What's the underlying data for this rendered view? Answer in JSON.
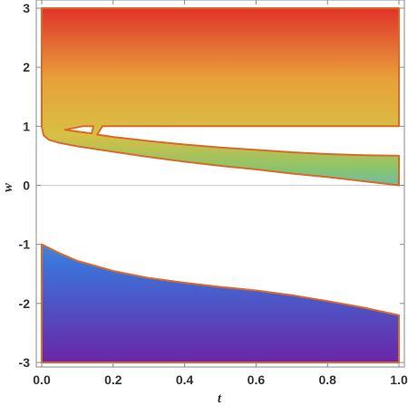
{
  "chart_data": {
    "type": "area",
    "title": "",
    "xlabel": "t",
    "ylabel": "w",
    "xlim": [
      0,
      1
    ],
    "ylim": [
      -3,
      3
    ],
    "x_ticks": [
      "0.0",
      "0.2",
      "0.4",
      "0.6",
      "0.8",
      "1.0"
    ],
    "y_ticks": [
      "-3",
      "-2",
      "-1",
      "0",
      "1",
      "2",
      "3"
    ],
    "grid": false,
    "colors": {
      "edge": "#d96a2a",
      "frame": "#888888",
      "zero_line": "#cccccc",
      "gradient_top": "#e0332a",
      "gradient_upper_mid": "#e8a03a",
      "gradient_mid": "#d7c043",
      "gradient_lower_mid": "#8cc46a",
      "gradient_zero": "#66b9b8",
      "gradient_low": "#3b74d9",
      "gradient_bottom": "#6a26a8"
    },
    "regions": [
      {
        "name": "",
        "boundary": [
          [
            0.0,
            3.0
          ],
          [
            1.0,
            3.0
          ],
          [
            1.0,
            1.0
          ],
          [
            0.17,
            1.0
          ],
          [
            0.155,
            0.86
          ],
          [
            0.2,
            0.82
          ],
          [
            0.3,
            0.75
          ],
          [
            0.4,
            0.69
          ],
          [
            0.5,
            0.64
          ],
          [
            0.6,
            0.6
          ],
          [
            0.7,
            0.56
          ],
          [
            0.8,
            0.53
          ],
          [
            0.9,
            0.51
          ],
          [
            1.0,
            0.5
          ],
          [
            1.0,
            0.0
          ],
          [
            0.9,
            0.07
          ],
          [
            0.8,
            0.14
          ],
          [
            0.7,
            0.2
          ],
          [
            0.6,
            0.27
          ],
          [
            0.5,
            0.33
          ],
          [
            0.4,
            0.4
          ],
          [
            0.3,
            0.48
          ],
          [
            0.2,
            0.57
          ],
          [
            0.1,
            0.66
          ],
          [
            0.05,
            0.72
          ],
          [
            0.02,
            0.77
          ],
          [
            0.005,
            0.85
          ],
          [
            0.0,
            1.0
          ]
        ],
        "notch": [
          [
            0.065,
            0.94
          ],
          [
            0.115,
            1.0
          ],
          [
            0.145,
            1.0
          ],
          [
            0.14,
            0.88
          ]
        ]
      },
      {
        "name": "",
        "boundary": [
          [
            0.0,
            -1.0
          ],
          [
            0.05,
            -1.15
          ],
          [
            0.1,
            -1.28
          ],
          [
            0.2,
            -1.45
          ],
          [
            0.3,
            -1.57
          ],
          [
            0.4,
            -1.65
          ],
          [
            0.5,
            -1.72
          ],
          [
            0.6,
            -1.78
          ],
          [
            0.7,
            -1.86
          ],
          [
            0.8,
            -1.96
          ],
          [
            0.9,
            -2.07
          ],
          [
            1.0,
            -2.2
          ],
          [
            1.0,
            -3.0
          ],
          [
            0.0,
            -3.0
          ]
        ]
      }
    ]
  }
}
